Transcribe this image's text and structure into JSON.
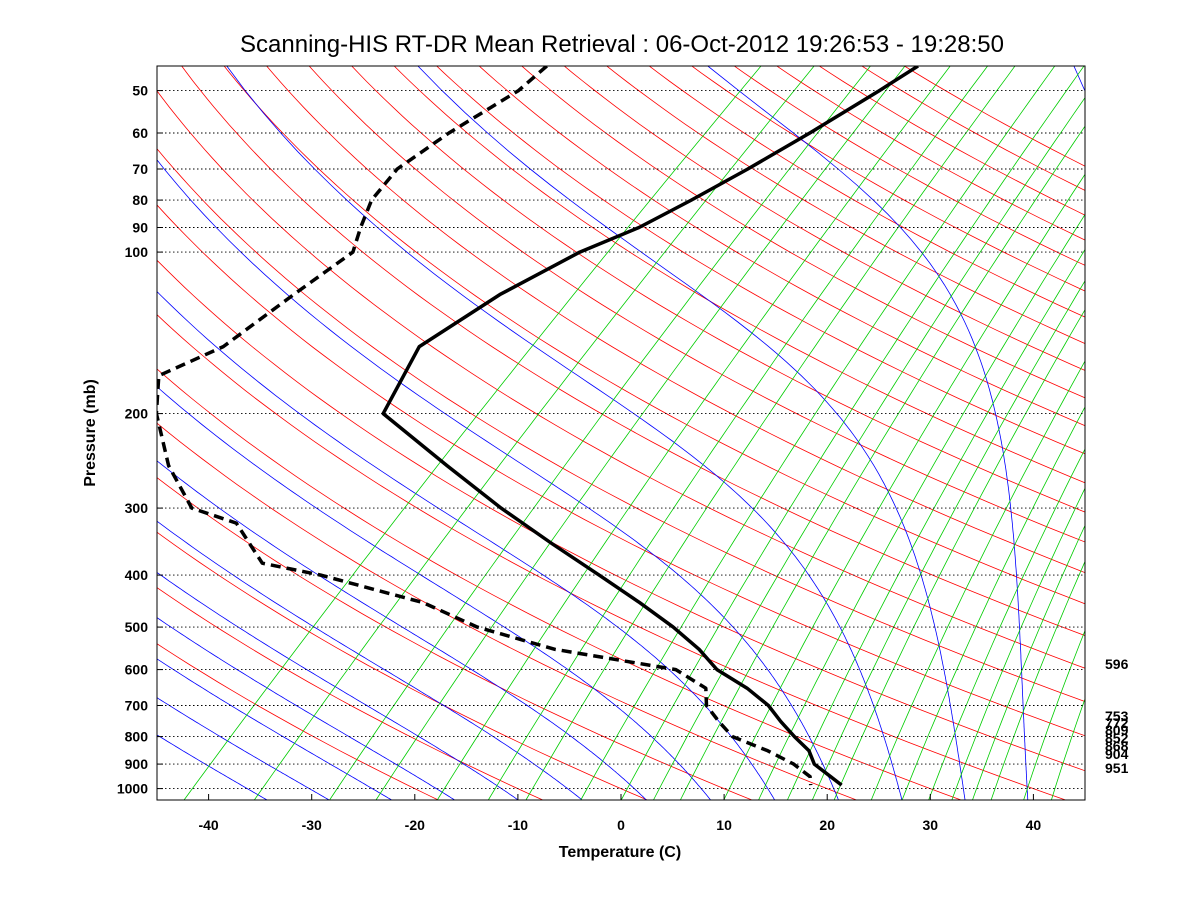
{
  "chart_data": {
    "type": "line",
    "title": "Scanning-HIS RT-DR Mean Retrieval : 06-Oct-2012 19:26:53 - 19:28:50",
    "xlabel": "Temperature (C)",
    "ylabel": "Pressure (mb)",
    "xlim": [
      -45,
      45
    ],
    "ylim": [
      1050,
      45
    ],
    "yscale": "log",
    "skew_deg_C_per_decade": 60,
    "x_ticks": [
      -40,
      -30,
      -20,
      -10,
      0,
      10,
      20,
      30,
      40
    ],
    "y_ticks": [
      50,
      60,
      70,
      80,
      90,
      100,
      200,
      300,
      400,
      500,
      600,
      700,
      800,
      900,
      1000
    ],
    "grid": "pressure-dotted",
    "background_lines": {
      "dry_adiabats_color": "#ff0000",
      "moist_adiabats_color": "#0000ff",
      "mixing_ratio_color": "#00cc00"
    },
    "series": [
      {
        "name": "Temperature",
        "style": "solid",
        "color": "#000000",
        "points": [
          {
            "p": 45,
            "t": -52
          },
          {
            "p": 50,
            "t": -53
          },
          {
            "p": 60,
            "t": -55
          },
          {
            "p": 70,
            "t": -57
          },
          {
            "p": 80,
            "t": -59
          },
          {
            "p": 90,
            "t": -61
          },
          {
            "p": 100,
            "t": -64
          },
          {
            "p": 120,
            "t": -67
          },
          {
            "p": 150,
            "t": -69
          },
          {
            "p": 200,
            "t": -65
          },
          {
            "p": 250,
            "t": -53
          },
          {
            "p": 300,
            "t": -43
          },
          {
            "p": 350,
            "t": -34
          },
          {
            "p": 400,
            "t": -26
          },
          {
            "p": 450,
            "t": -19
          },
          {
            "p": 500,
            "t": -13
          },
          {
            "p": 550,
            "t": -8
          },
          {
            "p": 600,
            "t": -4
          },
          {
            "p": 650,
            "t": 1
          },
          {
            "p": 700,
            "t": 5
          },
          {
            "p": 750,
            "t": 8
          },
          {
            "p": 800,
            "t": 11
          },
          {
            "p": 850,
            "t": 14
          },
          {
            "p": 900,
            "t": 16
          },
          {
            "p": 950,
            "t": 19
          },
          {
            "p": 985,
            "t": 21
          }
        ]
      },
      {
        "name": "Dewpoint",
        "style": "dashed",
        "color": "#000000",
        "points": [
          {
            "p": 45,
            "t": -88
          },
          {
            "p": 50,
            "t": -88
          },
          {
            "p": 60,
            "t": -90
          },
          {
            "p": 70,
            "t": -91
          },
          {
            "p": 80,
            "t": -90
          },
          {
            "p": 90,
            "t": -88
          },
          {
            "p": 100,
            "t": -86
          },
          {
            "p": 120,
            "t": -87
          },
          {
            "p": 150,
            "t": -88
          },
          {
            "p": 170,
            "t": -91
          },
          {
            "p": 200,
            "t": -87
          },
          {
            "p": 250,
            "t": -80
          },
          {
            "p": 300,
            "t": -73
          },
          {
            "p": 320,
            "t": -67
          },
          {
            "p": 380,
            "t": -60
          },
          {
            "p": 400,
            "t": -53
          },
          {
            "p": 450,
            "t": -40
          },
          {
            "p": 500,
            "t": -32
          },
          {
            "p": 550,
            "t": -22
          },
          {
            "p": 600,
            "t": -8
          },
          {
            "p": 650,
            "t": -3
          },
          {
            "p": 700,
            "t": -1
          },
          {
            "p": 750,
            "t": 2
          },
          {
            "p": 800,
            "t": 5
          },
          {
            "p": 850,
            "t": 10
          },
          {
            "p": 900,
            "t": 14
          },
          {
            "p": 950,
            "t": 17
          },
          {
            "p": 985,
            "t": 18
          }
        ]
      }
    ],
    "side_labels": [
      "596",
      "753",
      "772",
      "809",
      "852",
      "868",
      "904",
      "951"
    ]
  }
}
